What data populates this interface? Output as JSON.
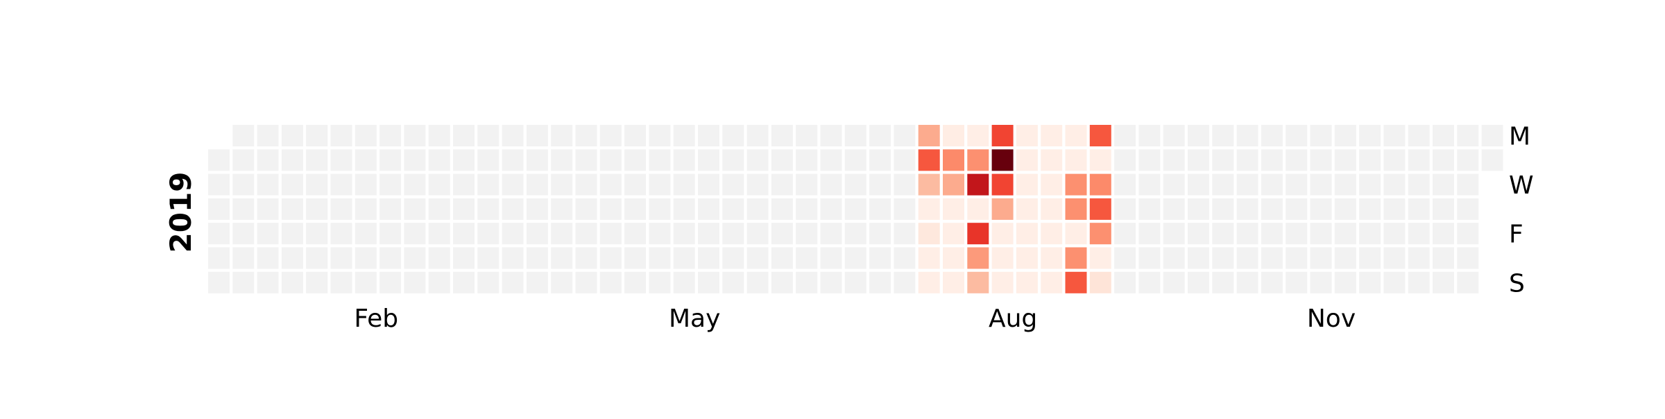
{
  "chart_data": {
    "type": "heatmap",
    "title": "",
    "year_label": "2019",
    "colormap": "Reds",
    "empty_color": "#f2f2f2",
    "cell_border_color": "#ffffff",
    "first_day_offset": 1,
    "day_labels": [
      {
        "row": 0,
        "label": "M"
      },
      {
        "row": 2,
        "label": "W"
      },
      {
        "row": 4,
        "label": "F"
      },
      {
        "row": 6,
        "label": "S"
      }
    ],
    "month_labels": [
      {
        "week": 6,
        "label": "Feb"
      },
      {
        "week": 19,
        "label": "May"
      },
      {
        "week": 32,
        "label": "Aug"
      },
      {
        "week": 45,
        "label": "Nov"
      }
    ],
    "num_weeks": 53,
    "value_range": [
      0,
      1
    ],
    "active_weeks": [
      {
        "week": 29,
        "values": [
          0.3,
          0.55,
          0.25,
          0.04,
          0.08,
          0.04,
          0.04
        ]
      },
      {
        "week": 30,
        "values": [
          0.05,
          0.4,
          0.3,
          0.04,
          0.04,
          0.04,
          0.04
        ]
      },
      {
        "week": 31,
        "values": [
          0.04,
          0.38,
          0.78,
          0.04,
          0.65,
          0.35,
          0.25
        ]
      },
      {
        "week": 32,
        "values": [
          0.6,
          1.0,
          0.6,
          0.3,
          0.04,
          0.04,
          0.04
        ]
      },
      {
        "week": 33,
        "values": [
          0.04,
          0.04,
          0.04,
          0.04,
          0.04,
          0.04,
          0.04
        ]
      },
      {
        "week": 34,
        "values": [
          0.04,
          0.04,
          0.04,
          0.04,
          0.04,
          0.04,
          0.04
        ]
      },
      {
        "week": 35,
        "values": [
          0.04,
          0.04,
          0.38,
          0.38,
          0.04,
          0.38,
          0.55
        ]
      },
      {
        "week": 36,
        "values": [
          0.55,
          0.04,
          0.4,
          0.55,
          0.38,
          0.04,
          0.1
        ]
      }
    ]
  }
}
